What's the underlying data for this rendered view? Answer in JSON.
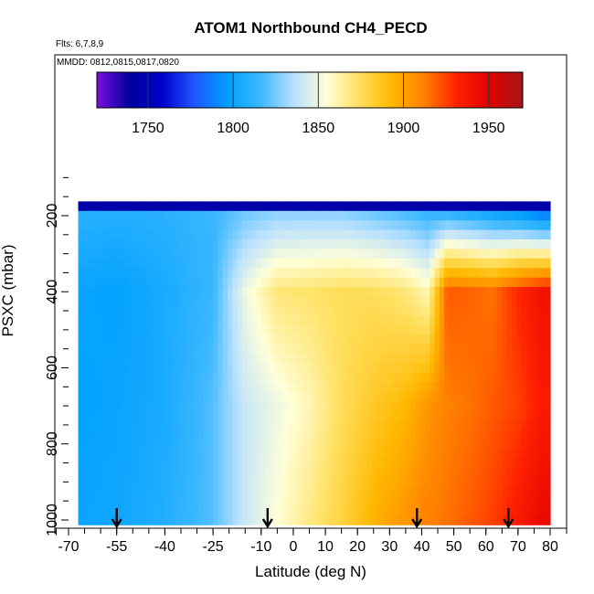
{
  "chart_data": {
    "type": "heatmap",
    "title": "ATOM1 Northbound CH4_PECD",
    "annotations": {
      "flights": "Flts: 6,7,8,9",
      "dates": "MMDD: 0812,0815,0817,0820"
    },
    "xlabel": "Latitude (deg N)",
    "ylabel": "PSXC (mbar)",
    "xlim": [
      -70,
      80
    ],
    "ylim": [
      1020,
      100
    ],
    "x_ticks": [
      "-70",
      "-55",
      "-40",
      "-25",
      "-10",
      "0",
      "10",
      "20",
      "30",
      "40",
      "50",
      "60",
      "70",
      "80"
    ],
    "y_ticks": [
      "200",
      "400",
      "600",
      "800",
      "1000"
    ],
    "colorbar": {
      "range": [
        1720,
        1970
      ],
      "ticks": [
        "1750",
        "1800",
        "1850",
        "1900",
        "1950"
      ],
      "colors": [
        "#7B10E0",
        "#00009C",
        "#0000CC",
        "#1E5AFF",
        "#00A0FF",
        "#3CB8FF",
        "#B8E0FF",
        "#FFFFD8",
        "#FFE060",
        "#FFB800",
        "#FF8000",
        "#FF2000",
        "#E00000",
        "#A01818"
      ]
    },
    "pressure_levels": [
      175,
      200,
      225,
      250,
      275,
      300,
      325,
      350,
      375,
      400,
      425,
      450,
      475,
      500,
      525,
      550,
      575,
      600,
      625,
      650,
      675,
      700,
      725,
      750,
      775,
      800,
      825,
      850,
      875,
      900,
      925,
      950,
      975,
      1000
    ],
    "latitude_range": [
      -67,
      80
    ],
    "ch4_profile_by_latitude": {
      "latitude": [
        -67,
        -55,
        -40,
        -25,
        -15,
        -5,
        5,
        15,
        25,
        35,
        42,
        48,
        55,
        62,
        70,
        78
      ],
      "upper_200mbar": [
        1810,
        1808,
        1810,
        1815,
        1825,
        1830,
        1830,
        1830,
        1825,
        1820,
        1815,
        1815,
        1810,
        1805,
        1800,
        1790
      ],
      "mid_400mbar": [
        1800,
        1798,
        1805,
        1815,
        1850,
        1870,
        1872,
        1875,
        1875,
        1870,
        1860,
        1920,
        1918,
        1915,
        1930,
        1940
      ],
      "lower_700mbar": [
        1798,
        1800,
        1805,
        1820,
        1840,
        1850,
        1860,
        1875,
        1885,
        1893,
        1905,
        1912,
        1915,
        1920,
        1925,
        1935
      ],
      "surface_1000mbar": [
        1800,
        1802,
        1808,
        1820,
        1840,
        1855,
        1868,
        1880,
        1895,
        1905,
        1912,
        1915,
        1920,
        1925,
        1935,
        1945
      ]
    },
    "stratospheric_top_layer_ch4": 1745,
    "profile_markers_latitude": [
      -55,
      -8,
      38.5,
      67
    ]
  }
}
